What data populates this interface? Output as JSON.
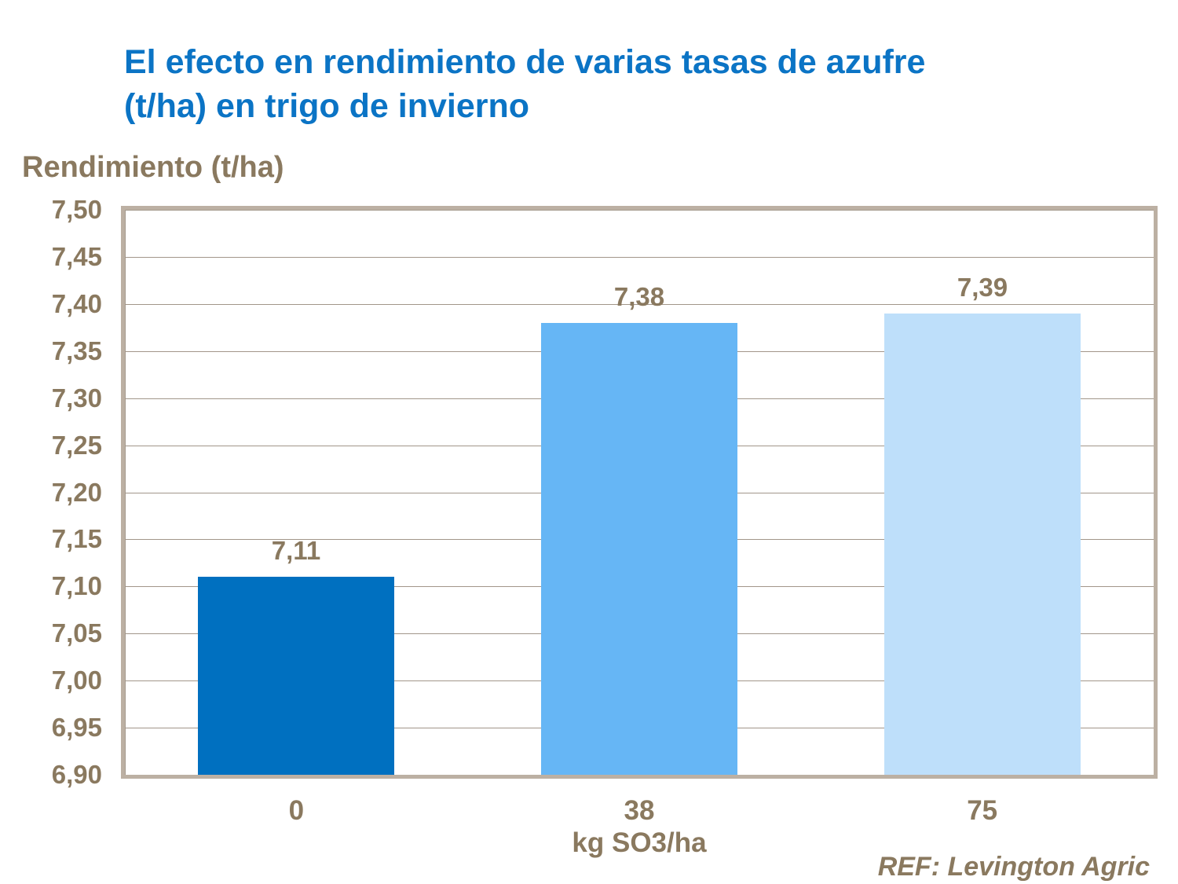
{
  "reference": "REF: Levington Agric",
  "colors": {
    "title_blue": "#0B74C5",
    "text_brown": "#8A795F",
    "plot_border": "#BCB0A3",
    "gridline": "#A2968A",
    "background": "#FFFFFF"
  },
  "chart_data": {
    "type": "bar",
    "title": "El efecto en rendimiento de varias tasas de azufre (t/ha) en trigo de invierno",
    "categories": [
      "0",
      "38",
      "75"
    ],
    "values": [
      7.11,
      7.38,
      7.39
    ],
    "value_labels": [
      "7,11",
      "7,38",
      "7,39"
    ],
    "xlabel": "kg SO3/ha",
    "ylabel": "Rendimiento (t/ha)",
    "ylim": [
      6.9,
      7.5
    ],
    "ytick_step": 0.05,
    "yticks": [
      "7,50",
      "7,45",
      "7,40",
      "7,35",
      "7,30",
      "7,25",
      "7,20",
      "7,15",
      "7,10",
      "7,05",
      "7,00",
      "6,95",
      "6,90"
    ],
    "grid": true,
    "legend": false,
    "bar_colors": [
      "#0070C0",
      "#66B6F5",
      "#BEDFFA"
    ]
  }
}
